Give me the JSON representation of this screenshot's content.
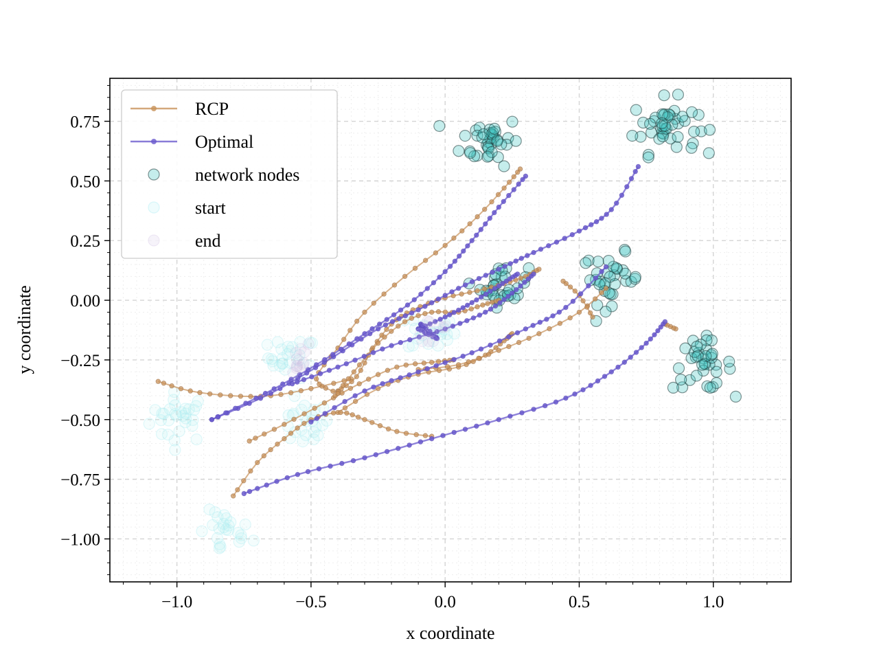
{
  "chart_data": {
    "type": "scatter",
    "title": "",
    "xlabel": "x coordinate",
    "ylabel": "y coordinate",
    "xlim": [
      -1.25,
      1.29
    ],
    "ylim": [
      -1.18,
      0.93
    ],
    "grid": true,
    "legend_position": "upper-left",
    "x_ticks": [
      -1.0,
      -0.5,
      0.0,
      0.5,
      1.0
    ],
    "x_tick_labels": [
      "−1.0",
      "−0.5",
      "0.0",
      "0.5",
      "1.0"
    ],
    "y_ticks": [
      -1.0,
      -0.75,
      -0.5,
      -0.25,
      0.0,
      0.25,
      0.5,
      0.75
    ],
    "y_tick_labels": [
      "−1.00",
      "−0.75",
      "−0.50",
      "−0.25",
      "0.00",
      "0.25",
      "0.50",
      "0.75"
    ],
    "colors": {
      "rcp": "#c8925a",
      "optimal": "#6a5acd",
      "network_node_fill": "#40c4c0",
      "network_node_edge": "#1f3b3b",
      "start": "#a8ecf2",
      "end": "#c9b7de"
    },
    "legend": [
      {
        "key": "rcp",
        "label": "RCP",
        "kind": "line"
      },
      {
        "key": "optimal",
        "label": "Optimal",
        "kind": "line"
      },
      {
        "key": "network_nodes",
        "label": "network nodes",
        "kind": "node"
      },
      {
        "key": "start",
        "label": "start",
        "kind": "start"
      },
      {
        "key": "end",
        "label": "end",
        "kind": "end"
      }
    ],
    "node_clusters": [
      {
        "center": [
          0.17,
          0.67
        ],
        "spread": 0.055,
        "count": 38
      },
      {
        "center": [
          0.82,
          0.73
        ],
        "spread": 0.06,
        "count": 45
      },
      {
        "center": [
          0.22,
          0.06
        ],
        "spread": 0.045,
        "count": 32
      },
      {
        "center": [
          0.62,
          0.09
        ],
        "spread": 0.055,
        "count": 34
      },
      {
        "center": [
          0.96,
          -0.27
        ],
        "spread": 0.055,
        "count": 38
      }
    ],
    "start_clusters": [
      {
        "center": [
          -0.99,
          -0.49
        ],
        "spread": 0.055,
        "count": 30
      },
      {
        "center": [
          -0.57,
          -0.24
        ],
        "spread": 0.045,
        "count": 24
      },
      {
        "center": [
          -0.53,
          -0.52
        ],
        "spread": 0.05,
        "count": 24
      },
      {
        "center": [
          -0.82,
          -0.98
        ],
        "spread": 0.05,
        "count": 24
      },
      {
        "center": [
          -0.05,
          -0.13
        ],
        "spread": 0.045,
        "count": 22
      }
    ],
    "end_clusters": [
      {
        "center": [
          -0.57,
          -0.24
        ],
        "spread": 0.04,
        "count": 12
      },
      {
        "center": [
          -0.05,
          -0.13
        ],
        "spread": 0.04,
        "count": 10
      }
    ],
    "series": [
      {
        "name": "RCP",
        "color_key": "rcp",
        "points": [
          [
            -1.07,
            -0.34
          ],
          [
            -0.95,
            -0.38
          ],
          [
            -0.8,
            -0.4
          ],
          [
            -0.65,
            -0.4
          ],
          [
            -0.5,
            -0.37
          ],
          [
            -0.35,
            -0.33
          ]
        ]
      },
      {
        "name": "RCP",
        "color_key": "rcp",
        "points": [
          [
            -0.73,
            -0.59
          ],
          [
            -0.6,
            -0.52
          ],
          [
            -0.45,
            -0.43
          ],
          [
            -0.32,
            -0.35
          ],
          [
            -0.18,
            -0.28
          ],
          [
            -0.05,
            -0.26
          ],
          [
            0.03,
            -0.25
          ]
        ]
      },
      {
        "name": "RCP",
        "color_key": "rcp",
        "points": [
          [
            -0.4,
            -0.47
          ],
          [
            -0.25,
            -0.37
          ],
          [
            -0.1,
            -0.31
          ],
          [
            0.05,
            -0.28
          ],
          [
            0.15,
            -0.23
          ],
          [
            0.22,
            -0.17
          ],
          [
            0.25,
            -0.14
          ]
        ]
      },
      {
        "name": "RCP",
        "color_key": "rcp",
        "points": [
          [
            -0.79,
            -0.82
          ],
          [
            -0.7,
            -0.68
          ],
          [
            -0.6,
            -0.58
          ],
          [
            -0.5,
            -0.5
          ],
          [
            -0.39,
            -0.47
          ],
          [
            -0.3,
            -0.5
          ],
          [
            -0.18,
            -0.55
          ],
          [
            -0.05,
            -0.57
          ]
        ]
      },
      {
        "name": "RCP",
        "color_key": "rcp",
        "points": [
          [
            -0.4,
            -0.38
          ],
          [
            -0.33,
            -0.32
          ],
          [
            -0.27,
            -0.2
          ],
          [
            -0.2,
            -0.1
          ],
          [
            -0.12,
            -0.04
          ],
          [
            0.0,
            0.01
          ],
          [
            0.12,
            0.04
          ],
          [
            0.22,
            0.07
          ],
          [
            0.3,
            0.1
          ],
          [
            0.35,
            0.13
          ]
        ]
      },
      {
        "name": "RCP",
        "color_key": "rcp",
        "points": [
          [
            -0.41,
            -0.4
          ],
          [
            -0.34,
            -0.3
          ],
          [
            -0.25,
            -0.18
          ],
          [
            -0.15,
            -0.09
          ],
          [
            -0.05,
            -0.05
          ],
          [
            0.05,
            -0.05
          ],
          [
            0.14,
            -0.02
          ],
          [
            0.2,
            0.0
          ]
        ]
      },
      {
        "name": "RCP",
        "color_key": "rcp",
        "points": [
          [
            -0.1,
            -0.29
          ],
          [
            0.05,
            -0.27
          ],
          [
            0.2,
            -0.21
          ],
          [
            0.35,
            -0.14
          ],
          [
            0.5,
            -0.05
          ],
          [
            0.6,
            0.05
          ]
        ]
      },
      {
        "name": "RCP",
        "color_key": "rcp",
        "points": [
          [
            -0.4,
            -0.39
          ],
          [
            -0.48,
            -0.33
          ],
          [
            -0.4,
            -0.2
          ],
          [
            -0.3,
            -0.05
          ],
          [
            -0.15,
            0.1
          ],
          [
            0.0,
            0.23
          ],
          [
            0.12,
            0.35
          ],
          [
            0.22,
            0.47
          ],
          [
            0.28,
            0.55
          ]
        ]
      },
      {
        "name": "RCP",
        "color_key": "rcp",
        "points": [
          [
            0.55,
            -0.07
          ],
          [
            0.5,
            0.02
          ],
          [
            0.44,
            0.08
          ]
        ]
      },
      {
        "name": "RCP",
        "color_key": "rcp",
        "points": [
          [
            0.86,
            -0.12
          ],
          [
            0.82,
            -0.1
          ]
        ]
      },
      {
        "name": "Optimal",
        "color_key": "optimal",
        "points": [
          [
            -0.87,
            -0.5
          ],
          [
            -0.65,
            -0.39
          ],
          [
            -0.45,
            -0.26
          ],
          [
            -0.25,
            -0.12
          ],
          [
            -0.1,
            -0.04
          ],
          [
            0.05,
            0.05
          ],
          [
            0.2,
            0.13
          ],
          [
            0.33,
            0.2
          ],
          [
            0.5,
            0.29
          ],
          [
            0.62,
            0.38
          ],
          [
            0.72,
            0.56
          ]
        ]
      },
      {
        "name": "Optimal",
        "color_key": "optimal",
        "points": [
          [
            -0.87,
            -0.5
          ],
          [
            -0.67,
            -0.39
          ],
          [
            -0.48,
            -0.27
          ],
          [
            -0.3,
            -0.14
          ],
          [
            -0.14,
            -0.02
          ],
          [
            0.0,
            0.12
          ],
          [
            0.1,
            0.25
          ],
          [
            0.2,
            0.39
          ],
          [
            0.3,
            0.52
          ]
        ]
      },
      {
        "name": "Optimal",
        "color_key": "optimal",
        "points": [
          [
            -0.57,
            -0.35
          ],
          [
            -0.4,
            -0.28
          ],
          [
            -0.2,
            -0.19
          ],
          [
            0.0,
            -0.12
          ],
          [
            0.15,
            -0.05
          ],
          [
            0.25,
            0.03
          ],
          [
            0.33,
            0.11
          ]
        ]
      },
      {
        "name": "Optimal",
        "color_key": "optimal",
        "points": [
          [
            -0.1,
            -0.12
          ],
          [
            0.0,
            -0.07
          ],
          [
            0.1,
            -0.01
          ],
          [
            0.2,
            0.06
          ],
          [
            0.27,
            0.11
          ]
        ]
      },
      {
        "name": "Optimal",
        "color_key": "optimal",
        "points": [
          [
            -0.5,
            -0.51
          ],
          [
            -0.3,
            -0.38
          ],
          [
            -0.1,
            -0.3
          ],
          [
            0.1,
            -0.22
          ],
          [
            0.3,
            -0.12
          ],
          [
            0.45,
            -0.03
          ],
          [
            0.6,
            0.14
          ]
        ]
      },
      {
        "name": "Optimal",
        "color_key": "optimal",
        "points": [
          [
            -0.75,
            -0.81
          ],
          [
            -0.55,
            -0.73
          ],
          [
            -0.3,
            -0.66
          ],
          [
            -0.05,
            -0.58
          ],
          [
            0.2,
            -0.5
          ],
          [
            0.45,
            -0.41
          ],
          [
            0.62,
            -0.3
          ],
          [
            0.75,
            -0.18
          ],
          [
            0.82,
            -0.09
          ]
        ]
      },
      {
        "name": "Optimal",
        "color_key": "optimal",
        "points": [
          [
            -0.07,
            -0.14
          ],
          [
            -0.09,
            -0.1
          ],
          [
            -0.03,
            -0.16
          ],
          [
            -0.1,
            -0.12
          ]
        ]
      }
    ]
  }
}
